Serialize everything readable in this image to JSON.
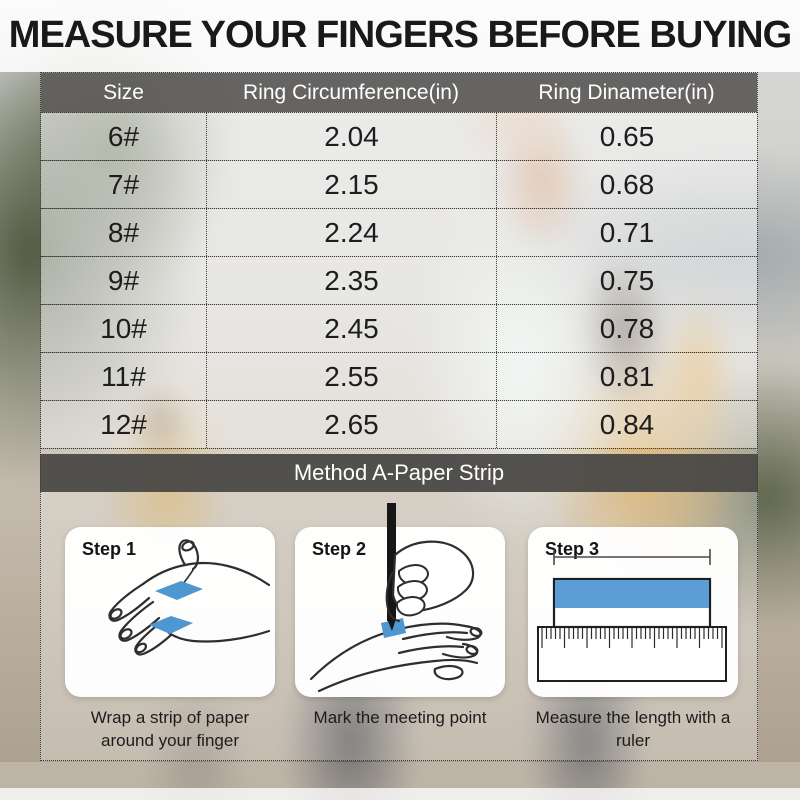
{
  "title": "MEASURE YOUR FINGERS BEFORE BUYING",
  "table": {
    "headers": [
      "Size",
      "Ring Circumference(in)",
      "Ring Dinameter(in)"
    ],
    "rows": [
      {
        "size": "6#",
        "circumference": "2.04",
        "diameter": "0.65"
      },
      {
        "size": "7#",
        "circumference": "2.15",
        "diameter": "0.68"
      },
      {
        "size": "8#",
        "circumference": "2.24",
        "diameter": "0.71"
      },
      {
        "size": "9#",
        "circumference": "2.35",
        "diameter": "0.75"
      },
      {
        "size": "10#",
        "circumference": "2.45",
        "diameter": "0.78"
      },
      {
        "size": "11#",
        "circumference": "2.55",
        "diameter": "0.81"
      },
      {
        "size": "12#",
        "circumference": "2.65",
        "diameter": "0.84"
      }
    ]
  },
  "method_banner": "Method A-Paper Strip",
  "steps": [
    {
      "label": "Step 1",
      "caption": "Wrap a strip of paper around your finger",
      "icon": "hand-with-paper-strip-icon"
    },
    {
      "label": "Step 2",
      "caption": "Mark the meeting point",
      "icon": "pen-marking-finger-icon"
    },
    {
      "label": "Step 3",
      "caption": "Measure the length with a ruler",
      "icon": "ruler-measuring-strip-icon"
    }
  ],
  "colors": {
    "accent_blue": "#4f97d0",
    "table_header_gray": "#615f5d",
    "banner_gray": "#4b4947",
    "title_text": "#191919"
  }
}
